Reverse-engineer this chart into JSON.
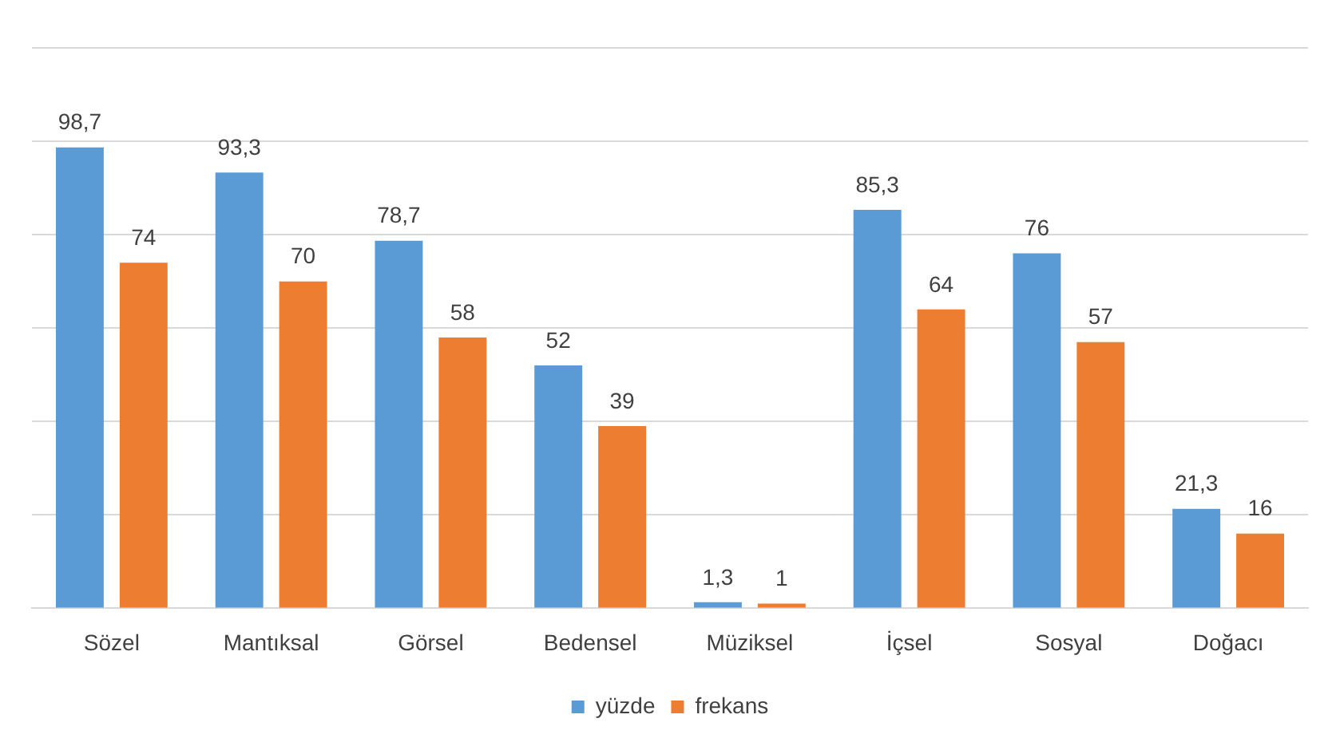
{
  "chart_data": {
    "type": "bar",
    "categories": [
      "Sözel",
      "Mantıksal",
      "Görsel",
      "Bedensel",
      "Müziksel",
      "İçsel",
      "Sosyal",
      "Doğacı"
    ],
    "series": [
      {
        "name": "yüzde",
        "color": "#5b9bd5",
        "values": [
          98.7,
          93.3,
          78.7,
          52,
          1.3,
          85.3,
          76,
          21.3
        ],
        "value_labels": [
          "98,7",
          "93,3",
          "78,7",
          "52",
          "1,3",
          "85,3",
          "76",
          "21,3"
        ]
      },
      {
        "name": "frekans",
        "color": "#ed7d31",
        "values": [
          74,
          70,
          58,
          39,
          1,
          64,
          57,
          16
        ],
        "value_labels": [
          "74",
          "70",
          "58",
          "39",
          "1",
          "64",
          "57",
          "16"
        ]
      }
    ],
    "ylim": [
      0,
      120
    ],
    "yticks": [
      {
        "value": 0,
        "label": null
      },
      {
        "value": 20,
        "label": null
      },
      {
        "value": 40,
        "label": null
      },
      {
        "value": 60,
        "label": null
      },
      {
        "value": 80,
        "label": null
      },
      {
        "value": 100,
        "label": null
      },
      {
        "value": 120,
        "label": null
      }
    ],
    "grid": "y",
    "tick_labels": "x",
    "legend": "bottom"
  }
}
